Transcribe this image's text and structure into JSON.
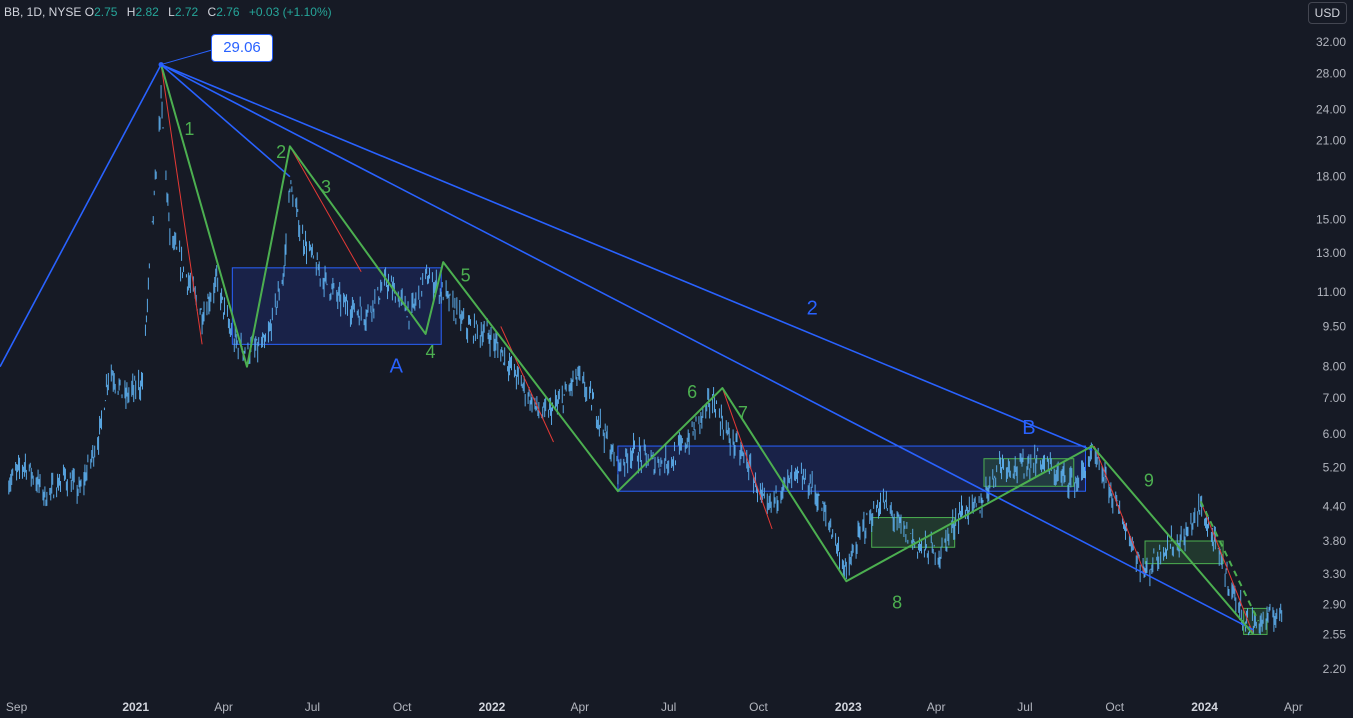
{
  "header": {
    "symbol": "BB, 1D, NYSE",
    "open_label": "O",
    "open": "2.75",
    "high_label": "H",
    "high": "2.82",
    "low_label": "L",
    "low": "2.72",
    "close_label": "C",
    "close": "2.76",
    "change": "+0.03 (+1.10%)"
  },
  "currency_button": "USD",
  "peak_price_label": "29.06",
  "colors": {
    "background": "#161a25",
    "candles": "#5aa9e6",
    "wave_green": "#4caf50",
    "wave_red": "#e53935",
    "wave_blue": "#2962ff",
    "box_blue_fill": "#1e2a66",
    "box_green_fill": "#2e5e3a"
  },
  "chart_data": {
    "type": "line",
    "symbol": "BB",
    "interval": "1D",
    "exchange": "NYSE",
    "y_scale": "log",
    "y_ticks": [
      "32.00",
      "28.00",
      "24.00",
      "21.00",
      "18.00",
      "15.00",
      "13.00",
      "11.00",
      "9.50",
      "8.00",
      "7.00",
      "6.00",
      "5.20",
      "4.40",
      "3.80",
      "3.30",
      "2.90",
      "2.55",
      "2.20"
    ],
    "x_ticks": [
      {
        "label": "Sep",
        "bold": false
      },
      {
        "label": "2021",
        "bold": true
      },
      {
        "label": "Apr",
        "bold": false
      },
      {
        "label": "Jul",
        "bold": false
      },
      {
        "label": "Oct",
        "bold": false
      },
      {
        "label": "2022",
        "bold": true
      },
      {
        "label": "Apr",
        "bold": false
      },
      {
        "label": "Jul",
        "bold": false
      },
      {
        "label": "Oct",
        "bold": false
      },
      {
        "label": "2023",
        "bold": true
      },
      {
        "label": "Apr",
        "bold": false
      },
      {
        "label": "Jul",
        "bold": false
      },
      {
        "label": "Oct",
        "bold": false
      },
      {
        "label": "2024",
        "bold": true
      },
      {
        "label": "Apr",
        "bold": false
      }
    ],
    "price_path": [
      [
        "2020-08-24",
        4.9
      ],
      [
        "2020-09-10",
        5.3
      ],
      [
        "2020-10-01",
        4.6
      ],
      [
        "2020-10-20",
        5.0
      ],
      [
        "2020-11-05",
        4.7
      ],
      [
        "2020-11-25",
        6.0
      ],
      [
        "2020-12-05",
        8.0
      ],
      [
        "2020-12-20",
        7.0
      ],
      [
        "2021-01-08",
        7.5
      ],
      [
        "2021-01-15",
        12.0
      ],
      [
        "2021-01-27",
        25.0
      ],
      [
        "2021-02-05",
        14.0
      ],
      [
        "2021-02-20",
        12.0
      ],
      [
        "2021-03-10",
        10.0
      ],
      [
        "2021-03-25",
        11.5
      ],
      [
        "2021-04-10",
        9.0
      ],
      [
        "2021-04-25",
        8.5
      ],
      [
        "2021-05-15",
        8.8
      ],
      [
        "2021-06-02",
        12.0
      ],
      [
        "2021-06-08",
        17.5
      ],
      [
        "2021-06-20",
        14.0
      ],
      [
        "2021-07-10",
        11.8
      ],
      [
        "2021-08-01",
        10.5
      ],
      [
        "2021-08-25",
        10.0
      ],
      [
        "2021-09-15",
        11.5
      ],
      [
        "2021-10-10",
        10.0
      ],
      [
        "2021-10-25",
        11.8
      ],
      [
        "2021-11-15",
        10.8
      ],
      [
        "2021-12-05",
        9.5
      ],
      [
        "2021-12-28",
        9.2
      ],
      [
        "2022-01-15",
        8.3
      ],
      [
        "2022-02-01",
        7.4
      ],
      [
        "2022-02-20",
        6.5
      ],
      [
        "2022-03-10",
        6.8
      ],
      [
        "2022-03-30",
        7.7
      ],
      [
        "2022-04-15",
        6.8
      ],
      [
        "2022-05-10",
        5.2
      ],
      [
        "2022-05-25",
        5.6
      ],
      [
        "2022-06-15",
        5.3
      ],
      [
        "2022-07-05",
        5.4
      ],
      [
        "2022-07-25",
        6.0
      ],
      [
        "2022-08-15",
        7.0
      ],
      [
        "2022-08-30",
        6.0
      ],
      [
        "2022-09-20",
        5.3
      ],
      [
        "2022-10-10",
        4.3
      ],
      [
        "2022-10-25",
        4.8
      ],
      [
        "2022-11-10",
        5.0
      ],
      [
        "2022-11-25",
        4.8
      ],
      [
        "2022-12-15",
        4.0
      ],
      [
        "2022-12-30",
        3.3
      ],
      [
        "2023-01-15",
        4.0
      ],
      [
        "2023-02-05",
        4.5
      ],
      [
        "2023-02-25",
        4.0
      ],
      [
        "2023-03-15",
        3.7
      ],
      [
        "2023-04-05",
        3.6
      ],
      [
        "2023-04-25",
        4.3
      ],
      [
        "2023-05-15",
        4.4
      ],
      [
        "2023-06-05",
        5.3
      ],
      [
        "2023-06-25",
        5.2
      ],
      [
        "2023-07-15",
        5.4
      ],
      [
        "2023-08-05",
        5.0
      ],
      [
        "2023-08-25",
        4.9
      ],
      [
        "2023-09-08",
        5.5
      ],
      [
        "2023-09-25",
        4.8
      ],
      [
        "2023-10-15",
        3.9
      ],
      [
        "2023-11-01",
        3.3
      ],
      [
        "2023-11-20",
        3.7
      ],
      [
        "2023-12-10",
        3.8
      ],
      [
        "2023-12-28",
        4.4
      ],
      [
        "2024-01-15",
        3.6
      ],
      [
        "2024-02-01",
        3.0
      ],
      [
        "2024-02-15",
        2.65
      ],
      [
        "2024-03-01",
        2.7
      ],
      [
        "2024-03-20",
        2.8
      ]
    ],
    "boxes": [
      {
        "color": "blue",
        "from": "2021-04-10",
        "to": "2021-11-10",
        "low": 8.8,
        "high": 12.2
      },
      {
        "color": "blue",
        "from": "2022-05-10",
        "to": "2023-09-01",
        "low": 4.7,
        "high": 5.7
      },
      {
        "color": "green",
        "from": "2023-01-25",
        "to": "2023-04-20",
        "low": 3.7,
        "high": 4.2
      },
      {
        "color": "green",
        "from": "2023-05-20",
        "to": "2023-08-20",
        "low": 4.8,
        "high": 5.4
      },
      {
        "color": "green",
        "from": "2023-11-01",
        "to": "2024-01-20",
        "low": 3.45,
        "high": 3.8
      },
      {
        "color": "green",
        "from": "2024-02-10",
        "to": "2024-03-05",
        "low": 2.55,
        "high": 2.85
      }
    ],
    "blue_lines": [
      [
        [
          "2020-08-15",
          8.0
        ],
        [
          "2021-01-27",
          29.06
        ]
      ],
      [
        [
          "2021-01-27",
          29.06
        ],
        [
          "2023-09-08",
          5.6
        ]
      ],
      [
        [
          "2021-06-08",
          18.0
        ],
        [
          "2021-01-27",
          29.06
        ]
      ],
      [
        [
          "2021-01-27",
          29.06
        ],
        [
          "2024-02-20",
          2.6
        ]
      ]
    ],
    "green_lines": [
      [
        [
          "2021-01-27",
          29.06
        ],
        [
          "2021-04-25",
          8.0
        ],
        [
          "2021-06-08",
          20.5
        ],
        [
          "2021-10-25",
          9.2
        ],
        [
          "2021-11-12",
          12.5
        ],
        [
          "2022-05-10",
          4.7
        ],
        [
          "2022-08-25",
          7.3
        ],
        [
          "2022-12-30",
          3.2
        ],
        [
          "2023-09-08",
          5.7
        ],
        [
          "2024-02-20",
          2.55
        ]
      ]
    ],
    "red_lines": [
      [
        [
          "2021-01-27",
          29.06
        ],
        [
          "2021-03-10",
          8.8
        ]
      ],
      [
        [
          "2021-06-08",
          20.5
        ],
        [
          "2021-08-20",
          12.0
        ]
      ],
      [
        [
          "2022-01-10",
          9.5
        ],
        [
          "2022-03-05",
          5.8
        ]
      ],
      [
        [
          "2022-08-25",
          7.3
        ],
        [
          "2022-10-15",
          4.0
        ]
      ],
      [
        [
          "2023-09-10",
          5.7
        ],
        [
          "2023-11-01",
          3.3
        ]
      ],
      [
        [
          "2023-12-28",
          4.5
        ],
        [
          "2024-02-20",
          2.55
        ]
      ]
    ],
    "wave_labels": [
      {
        "text": "1",
        "date": "2021-02-25",
        "price": 21.5,
        "color": "green"
      },
      {
        "text": "2",
        "date": "2021-05-30",
        "price": 19.5,
        "color": "green"
      },
      {
        "text": "3",
        "date": "2021-07-15",
        "price": 16.8,
        "color": "green"
      },
      {
        "text": "4",
        "date": "2021-10-30",
        "price": 8.3,
        "color": "green"
      },
      {
        "text": "5",
        "date": "2021-12-05",
        "price": 11.5,
        "color": "green"
      },
      {
        "text": "6",
        "date": "2022-07-25",
        "price": 7.0,
        "color": "green"
      },
      {
        "text": "7",
        "date": "2022-09-15",
        "price": 6.4,
        "color": "green"
      },
      {
        "text": "8",
        "date": "2023-02-20",
        "price": 2.85,
        "color": "green"
      },
      {
        "text": "9",
        "date": "2023-11-05",
        "price": 4.8,
        "color": "green"
      },
      {
        "text": "A",
        "date": "2021-09-25",
        "price": 7.8,
        "color": "blue"
      },
      {
        "text": "2",
        "date": "2022-11-25",
        "price": 10.0,
        "color": "blue"
      },
      {
        "text": "B",
        "date": "2023-07-05",
        "price": 6.0,
        "color": "blue"
      }
    ],
    "peak": {
      "date": "2021-01-27",
      "price": 29.06
    }
  }
}
